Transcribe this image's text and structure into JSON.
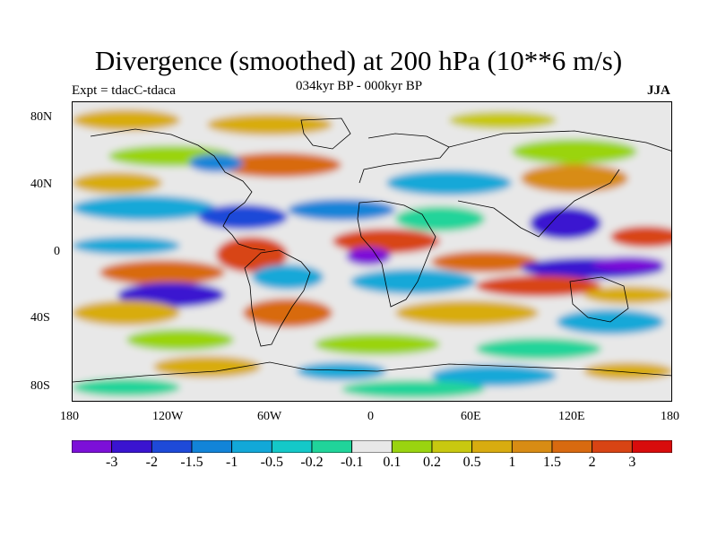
{
  "title": "Divergence (smoothed) at 200 hPa (10**6 m/s)",
  "experiment": "Expt = tdacC-tdaca",
  "period": "034kyr BP - 000kyr BP",
  "season": "JJA",
  "map": {
    "lat_labels": [
      "80N",
      "40N",
      "0",
      "40S",
      "80S"
    ],
    "lon_labels": [
      "180",
      "120W",
      "60W",
      "0",
      "60E",
      "120E",
      "180"
    ],
    "land_color": "#e8e8e8",
    "coastline_color": "#000000"
  },
  "colorbar": {
    "colors": [
      "#7c10d8",
      "#3a14d0",
      "#1e4ad8",
      "#1284d8",
      "#12a8d8",
      "#14c8c8",
      "#20d49a",
      "#e8e8e8",
      "#9ad410",
      "#c8c810",
      "#d8ac10",
      "#d88c14",
      "#d86a10",
      "#d84414",
      "#d80c0c"
    ],
    "labels": [
      "-3",
      "-2",
      "-1.5",
      "-1",
      "-0.5",
      "-0.2",
      "-0.1",
      "0.1",
      "0.2",
      "0.5",
      "1",
      "1.5",
      "2",
      "3"
    ]
  }
}
